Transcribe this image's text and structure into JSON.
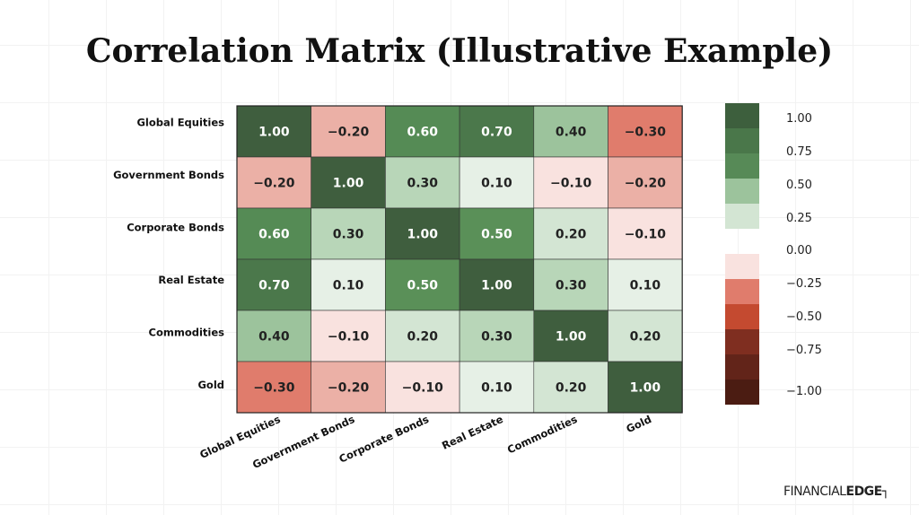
{
  "title": "Correlation Matrix (Illustrative Example)",
  "logo": {
    "part1": "FINANCIAL",
    "part2": "EDGE"
  },
  "chart_data": {
    "type": "heatmap",
    "title": "Correlation Matrix (Illustrative Example)",
    "rows": [
      "Global Equities",
      "Government Bonds",
      "Corporate Bonds",
      "Real Estate",
      "Commodities",
      "Gold"
    ],
    "columns": [
      "Global Equities",
      "Government Bonds",
      "Corporate Bonds",
      "Real Estate",
      "Commodities",
      "Gold"
    ],
    "values": [
      [
        1.0,
        -0.2,
        0.6,
        0.7,
        0.4,
        -0.3
      ],
      [
        -0.2,
        1.0,
        0.3,
        0.1,
        -0.1,
        -0.2
      ],
      [
        0.6,
        0.3,
        1.0,
        0.5,
        0.2,
        -0.1
      ],
      [
        0.7,
        0.1,
        0.5,
        1.0,
        0.3,
        0.1
      ],
      [
        0.4,
        -0.1,
        0.2,
        0.3,
        1.0,
        0.2
      ],
      [
        -0.3,
        -0.2,
        -0.1,
        0.1,
        0.2,
        1.0
      ]
    ],
    "colorbar": {
      "range": [
        -1,
        1
      ],
      "ticks": [
        "1.00",
        "0.75",
        "0.50",
        "0.25",
        "0.00",
        "-0.25",
        "-0.50",
        "-0.75",
        "-1.00"
      ],
      "green_colors": [
        "#3d5f3d",
        "#4a774a",
        "#578a57",
        "#9cc39c",
        "#d3e5d3"
      ],
      "red_colors": [
        "#f9e2df",
        "#e07c6c",
        "#c44a30",
        "#7f2e20",
        "#622419",
        "#4b1c12"
      ]
    }
  }
}
